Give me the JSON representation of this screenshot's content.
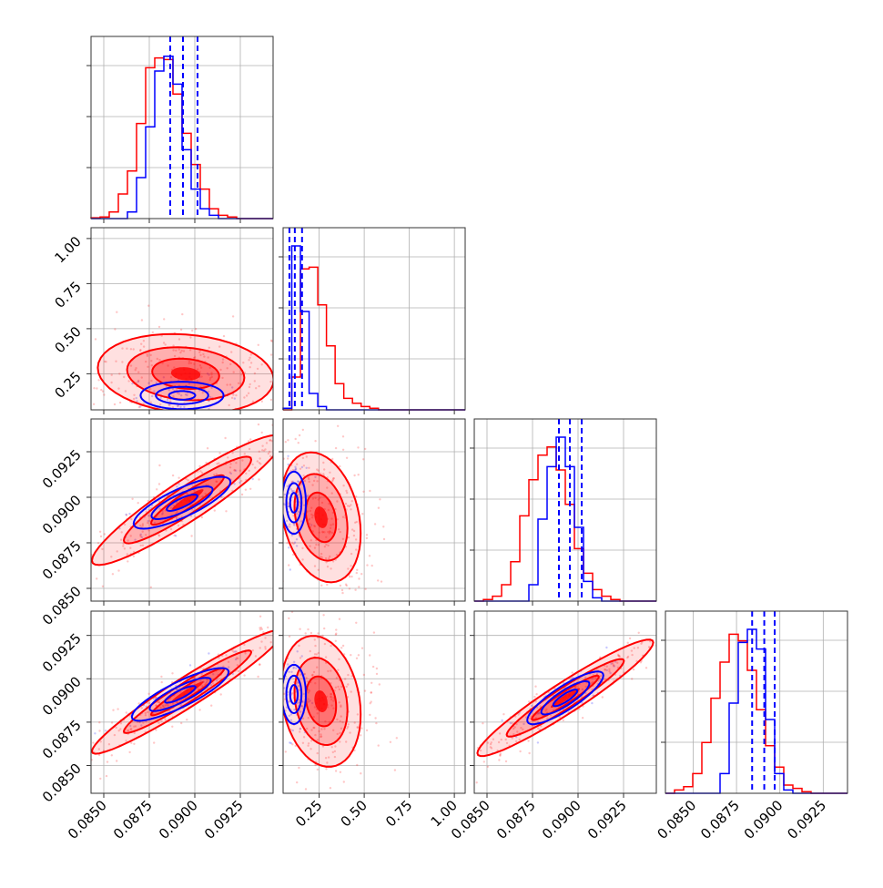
{
  "chart_data": {
    "type": "corner",
    "n_params": 4,
    "grid": true,
    "colors": {
      "series_a": "#0000ff",
      "series_b": "#ff0000"
    },
    "axes": {
      "p0": {
        "range": [
          0.0843,
          0.0943
        ],
        "ticks": [
          0.085,
          0.0875,
          0.09,
          0.0925
        ],
        "tick_labels": [
          "0.0850",
          "0.0875",
          "0.0900",
          "0.0925"
        ]
      },
      "p1": {
        "range": [
          0.05,
          1.06
        ],
        "ticks": [
          0.25,
          0.5,
          0.75,
          1.0
        ],
        "tick_labels": [
          "0.25",
          "0.50",
          "0.75",
          "1.00"
        ]
      },
      "p2": {
        "range": [
          0.0843,
          0.0943
        ],
        "ticks": [
          0.085,
          0.0875,
          0.09,
          0.0925
        ],
        "tick_labels": [
          "0.0850",
          "0.0875",
          "0.0900",
          "0.0925"
        ]
      },
      "p3": {
        "range": [
          0.0834,
          0.0939
        ],
        "ticks": [
          0.085,
          0.0875,
          0.09,
          0.0925
        ],
        "tick_labels": [
          "0.0850",
          "0.0875",
          "0.0900",
          "0.0925"
        ]
      }
    },
    "marginals": [
      {
        "param": "p0",
        "series_a": {
          "values": [
            0,
            0,
            0,
            0,
            0.04,
            0.25,
            0.56,
            0.9,
            0.99,
            0.82,
            0.42,
            0.18,
            0.06,
            0.02,
            0,
            0,
            0,
            0,
            0,
            0
          ]
        },
        "series_b": {
          "values": [
            0.005,
            0.01,
            0.04,
            0.15,
            0.29,
            0.58,
            0.92,
            0.98,
            0.97,
            0.76,
            0.52,
            0.33,
            0.18,
            0.06,
            0.02,
            0.01,
            0,
            0,
            0,
            0
          ]
        },
        "quantiles_a": [
          0.08865,
          0.08935,
          0.09015
        ]
      },
      {
        "param": "p1",
        "series_a": {
          "values": [
            0.01,
            1.0,
            0.6,
            0.1,
            0.02,
            0,
            0,
            0,
            0,
            0,
            0,
            0,
            0,
            0,
            0,
            0,
            0,
            0,
            0,
            0,
            0
          ]
        },
        "series_b": {
          "values": [
            0,
            0.2,
            0.86,
            0.87,
            0.64,
            0.39,
            0.16,
            0.07,
            0.04,
            0.02,
            0.01,
            0,
            0,
            0,
            0,
            0,
            0,
            0,
            0,
            0,
            0
          ]
        },
        "quantiles_a": [
          0.085,
          0.115,
          0.155
        ]
      },
      {
        "param": "p2",
        "series_a": {
          "values": [
            0,
            0,
            0,
            0,
            0,
            0,
            0.1,
            0.5,
            0.82,
            1.0,
            0.82,
            0.45,
            0.12,
            0.02,
            0,
            0,
            0,
            0,
            0,
            0
          ]
        },
        "series_b": {
          "values": [
            0,
            0.01,
            0.03,
            0.1,
            0.24,
            0.52,
            0.74,
            0.89,
            0.94,
            0.8,
            0.59,
            0.32,
            0.17,
            0.07,
            0.03,
            0.01,
            0,
            0,
            0,
            0
          ]
        },
        "quantiles_a": [
          0.08895,
          0.08955,
          0.0902
        ]
      },
      {
        "param": "p3",
        "series_a": {
          "values": [
            0,
            0,
            0,
            0,
            0,
            0,
            0.12,
            0.55,
            0.92,
            1.0,
            0.88,
            0.45,
            0.12,
            0.02,
            0,
            0,
            0,
            0,
            0,
            0
          ]
        },
        "series_b": {
          "values": [
            0,
            0.02,
            0.04,
            0.12,
            0.31,
            0.58,
            0.8,
            0.97,
            0.93,
            0.75,
            0.51,
            0.29,
            0.16,
            0.05,
            0.03,
            0.01,
            0,
            0,
            0,
            0
          ]
        },
        "quantiles_a": [
          0.0884,
          0.0891,
          0.0897
        ]
      }
    ],
    "joint": [
      {
        "x_param": "p0",
        "y_param": "p1",
        "series_a": {
          "center": [
            0.0893,
            0.13
          ],
          "spread": [
            0.0012,
            0.04
          ],
          "corr": 0.0
        },
        "series_b": {
          "center": [
            0.0895,
            0.25
          ],
          "spread": [
            0.0023,
            0.105
          ],
          "corr": -0.15
        }
      },
      {
        "x_param": "p0",
        "y_param": "p2",
        "series_a": {
          "center": [
            0.0893,
            0.0897
          ],
          "spread": [
            0.0014,
            0.00075
          ],
          "corr": 0.8
        },
        "series_b": {
          "center": [
            0.0896,
            0.08985
          ],
          "spread": [
            0.0025,
            0.0017
          ],
          "corr": 0.93
        }
      },
      {
        "x_param": "p1",
        "y_param": "p2",
        "series_a": {
          "center": [
            0.11,
            0.0897
          ],
          "spread": [
            0.035,
            0.0009
          ],
          "corr": 0.0
        },
        "series_b": {
          "center": [
            0.26,
            0.0889
          ],
          "spread": [
            0.105,
            0.0017
          ],
          "corr": -0.25
        }
      },
      {
        "x_param": "p0",
        "y_param": "p3",
        "series_a": {
          "center": [
            0.0892,
            0.0891
          ],
          "spread": [
            0.0014,
            0.0008
          ],
          "corr": 0.85
        },
        "series_b": {
          "center": [
            0.0896,
            0.08925
          ],
          "spread": [
            0.0025,
            0.0017
          ],
          "corr": 0.96
        }
      },
      {
        "x_param": "p1",
        "y_param": "p3",
        "series_a": {
          "center": [
            0.11,
            0.0891
          ],
          "spread": [
            0.035,
            0.0009
          ],
          "corr": 0.0
        },
        "series_b": {
          "center": [
            0.26,
            0.0887
          ],
          "spread": [
            0.105,
            0.0018
          ],
          "corr": -0.2
        }
      },
      {
        "x_param": "p2",
        "y_param": "p3",
        "series_a": {
          "center": [
            0.0893,
            0.0889
          ],
          "spread": [
            0.0011,
            0.0008
          ],
          "corr": 0.85
        },
        "series_b": {
          "center": [
            0.0893,
            0.0889
          ],
          "spread": [
            0.0023,
            0.0016
          ],
          "corr": 0.95
        }
      }
    ]
  }
}
